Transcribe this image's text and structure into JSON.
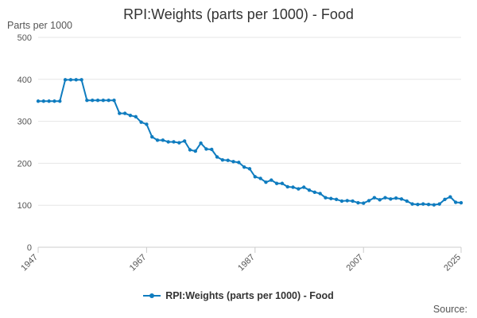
{
  "chart_data": {
    "type": "line",
    "title": "RPI:Weights (parts per 1000) - Food",
    "ylabel": "Parts per 1000",
    "xlabel": "",
    "ylim": [
      0,
      500
    ],
    "yticks": [
      "0",
      "100",
      "200",
      "300",
      "400",
      "500"
    ],
    "xlim": [
      1947,
      2025
    ],
    "xticks": [
      "1947",
      "1967",
      "1987",
      "2007",
      "2025"
    ],
    "series": [
      {
        "name": "RPI:Weights (parts per 1000) - Food",
        "color": "#0f7cbf",
        "x": [
          1947,
          1948,
          1949,
          1950,
          1951,
          1952,
          1953,
          1954,
          1955,
          1956,
          1957,
          1958,
          1959,
          1960,
          1961,
          1962,
          1963,
          1964,
          1965,
          1966,
          1967,
          1968,
          1969,
          1970,
          1971,
          1972,
          1973,
          1974,
          1975,
          1976,
          1977,
          1978,
          1979,
          1980,
          1981,
          1982,
          1983,
          1984,
          1985,
          1986,
          1987,
          1988,
          1989,
          1990,
          1991,
          1992,
          1993,
          1994,
          1995,
          1996,
          1997,
          1998,
          1999,
          2000,
          2001,
          2002,
          2003,
          2004,
          2005,
          2006,
          2007,
          2008,
          2009,
          2010,
          2011,
          2012,
          2013,
          2014,
          2015,
          2016,
          2017,
          2018,
          2019,
          2020,
          2021,
          2022,
          2023,
          2024,
          2025
        ],
        "values": [
          348,
          348,
          348,
          348,
          348,
          399,
          399,
          399,
          399,
          350,
          350,
          350,
          350,
          350,
          350,
          319,
          319,
          314,
          311,
          298,
          293,
          263,
          255,
          255,
          251,
          251,
          249,
          253,
          232,
          229,
          248,
          234,
          233,
          215,
          208,
          207,
          204,
          202,
          191,
          187,
          168,
          164,
          155,
          160,
          152,
          152,
          144,
          143,
          139,
          143,
          136,
          131,
          128,
          118,
          116,
          114,
          110,
          111,
          110,
          106,
          105,
          111,
          118,
          113,
          118,
          115,
          117,
          115,
          110,
          103,
          102,
          103,
          102,
          101,
          103,
          114,
          120,
          107,
          106
        ]
      }
    ]
  },
  "legend": {
    "label": "RPI:Weights (parts per 1000) - Food"
  },
  "source": "Source:"
}
